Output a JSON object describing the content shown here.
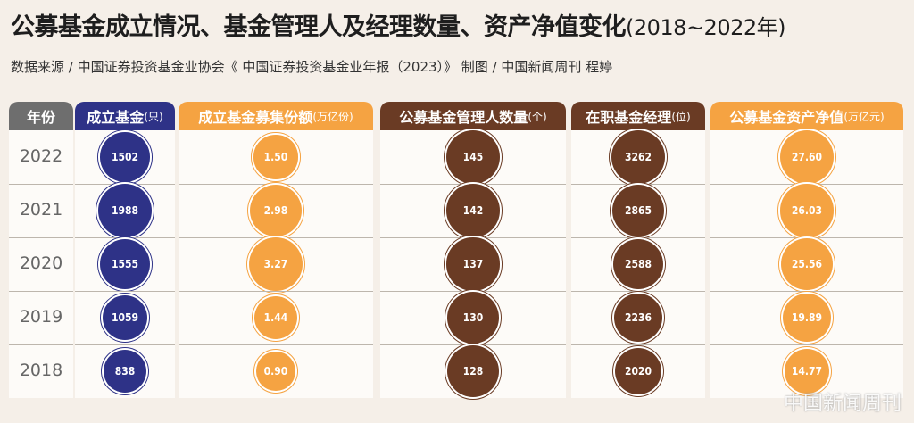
{
  "title": "公募基金成立情况、基金管理人及经理数量、资产净值变化",
  "title_years": "(2018~2022年)",
  "source": "数据来源 / 中国证券投资基金业协会《 中国证券投资基金业年报（2023）》      制图 / 中国新闻周刊   程婷",
  "watermark": "中国新闻周刊",
  "colors": {
    "year_header": "#6e6e6e",
    "navy": "#2e3287",
    "orange": "#f5a342",
    "brown": "#6a3b24"
  },
  "headers": [
    {
      "label": "年份",
      "unit": ""
    },
    {
      "label": "成立基金",
      "unit": "(只)"
    },
    {
      "label": "成立基金募集份额",
      "unit": "(万亿份)"
    },
    {
      "label": "公募基金管理人数量",
      "unit": "(个)"
    },
    {
      "label": "在职基金经理",
      "unit": "(位)"
    },
    {
      "label": "公募基金资产净值",
      "unit": "(万亿元)"
    }
  ],
  "chart_data": {
    "type": "table",
    "columns": [
      "年份",
      "成立基金(只)",
      "成立基金募集份额(万亿份)",
      "公募基金管理人数量(个)",
      "在职基金经理(位)",
      "公募基金资产净值(万亿元)"
    ],
    "rows": [
      {
        "year": "2022",
        "funds": "1502",
        "shares": "1.50",
        "managers": "145",
        "fund_managers": "3262",
        "nav": "27.60"
      },
      {
        "year": "2021",
        "funds": "1988",
        "shares": "2.98",
        "managers": "142",
        "fund_managers": "2865",
        "nav": "26.03"
      },
      {
        "year": "2020",
        "funds": "1555",
        "shares": "3.27",
        "managers": "137",
        "fund_managers": "2588",
        "nav": "25.56"
      },
      {
        "year": "2019",
        "funds": "1059",
        "shares": "1.44",
        "managers": "130",
        "fund_managers": "2236",
        "nav": "19.89"
      },
      {
        "year": "2018",
        "funds": "838",
        "shares": "0.90",
        "managers": "128",
        "fund_managers": "2020",
        "nav": "14.77"
      }
    ]
  }
}
